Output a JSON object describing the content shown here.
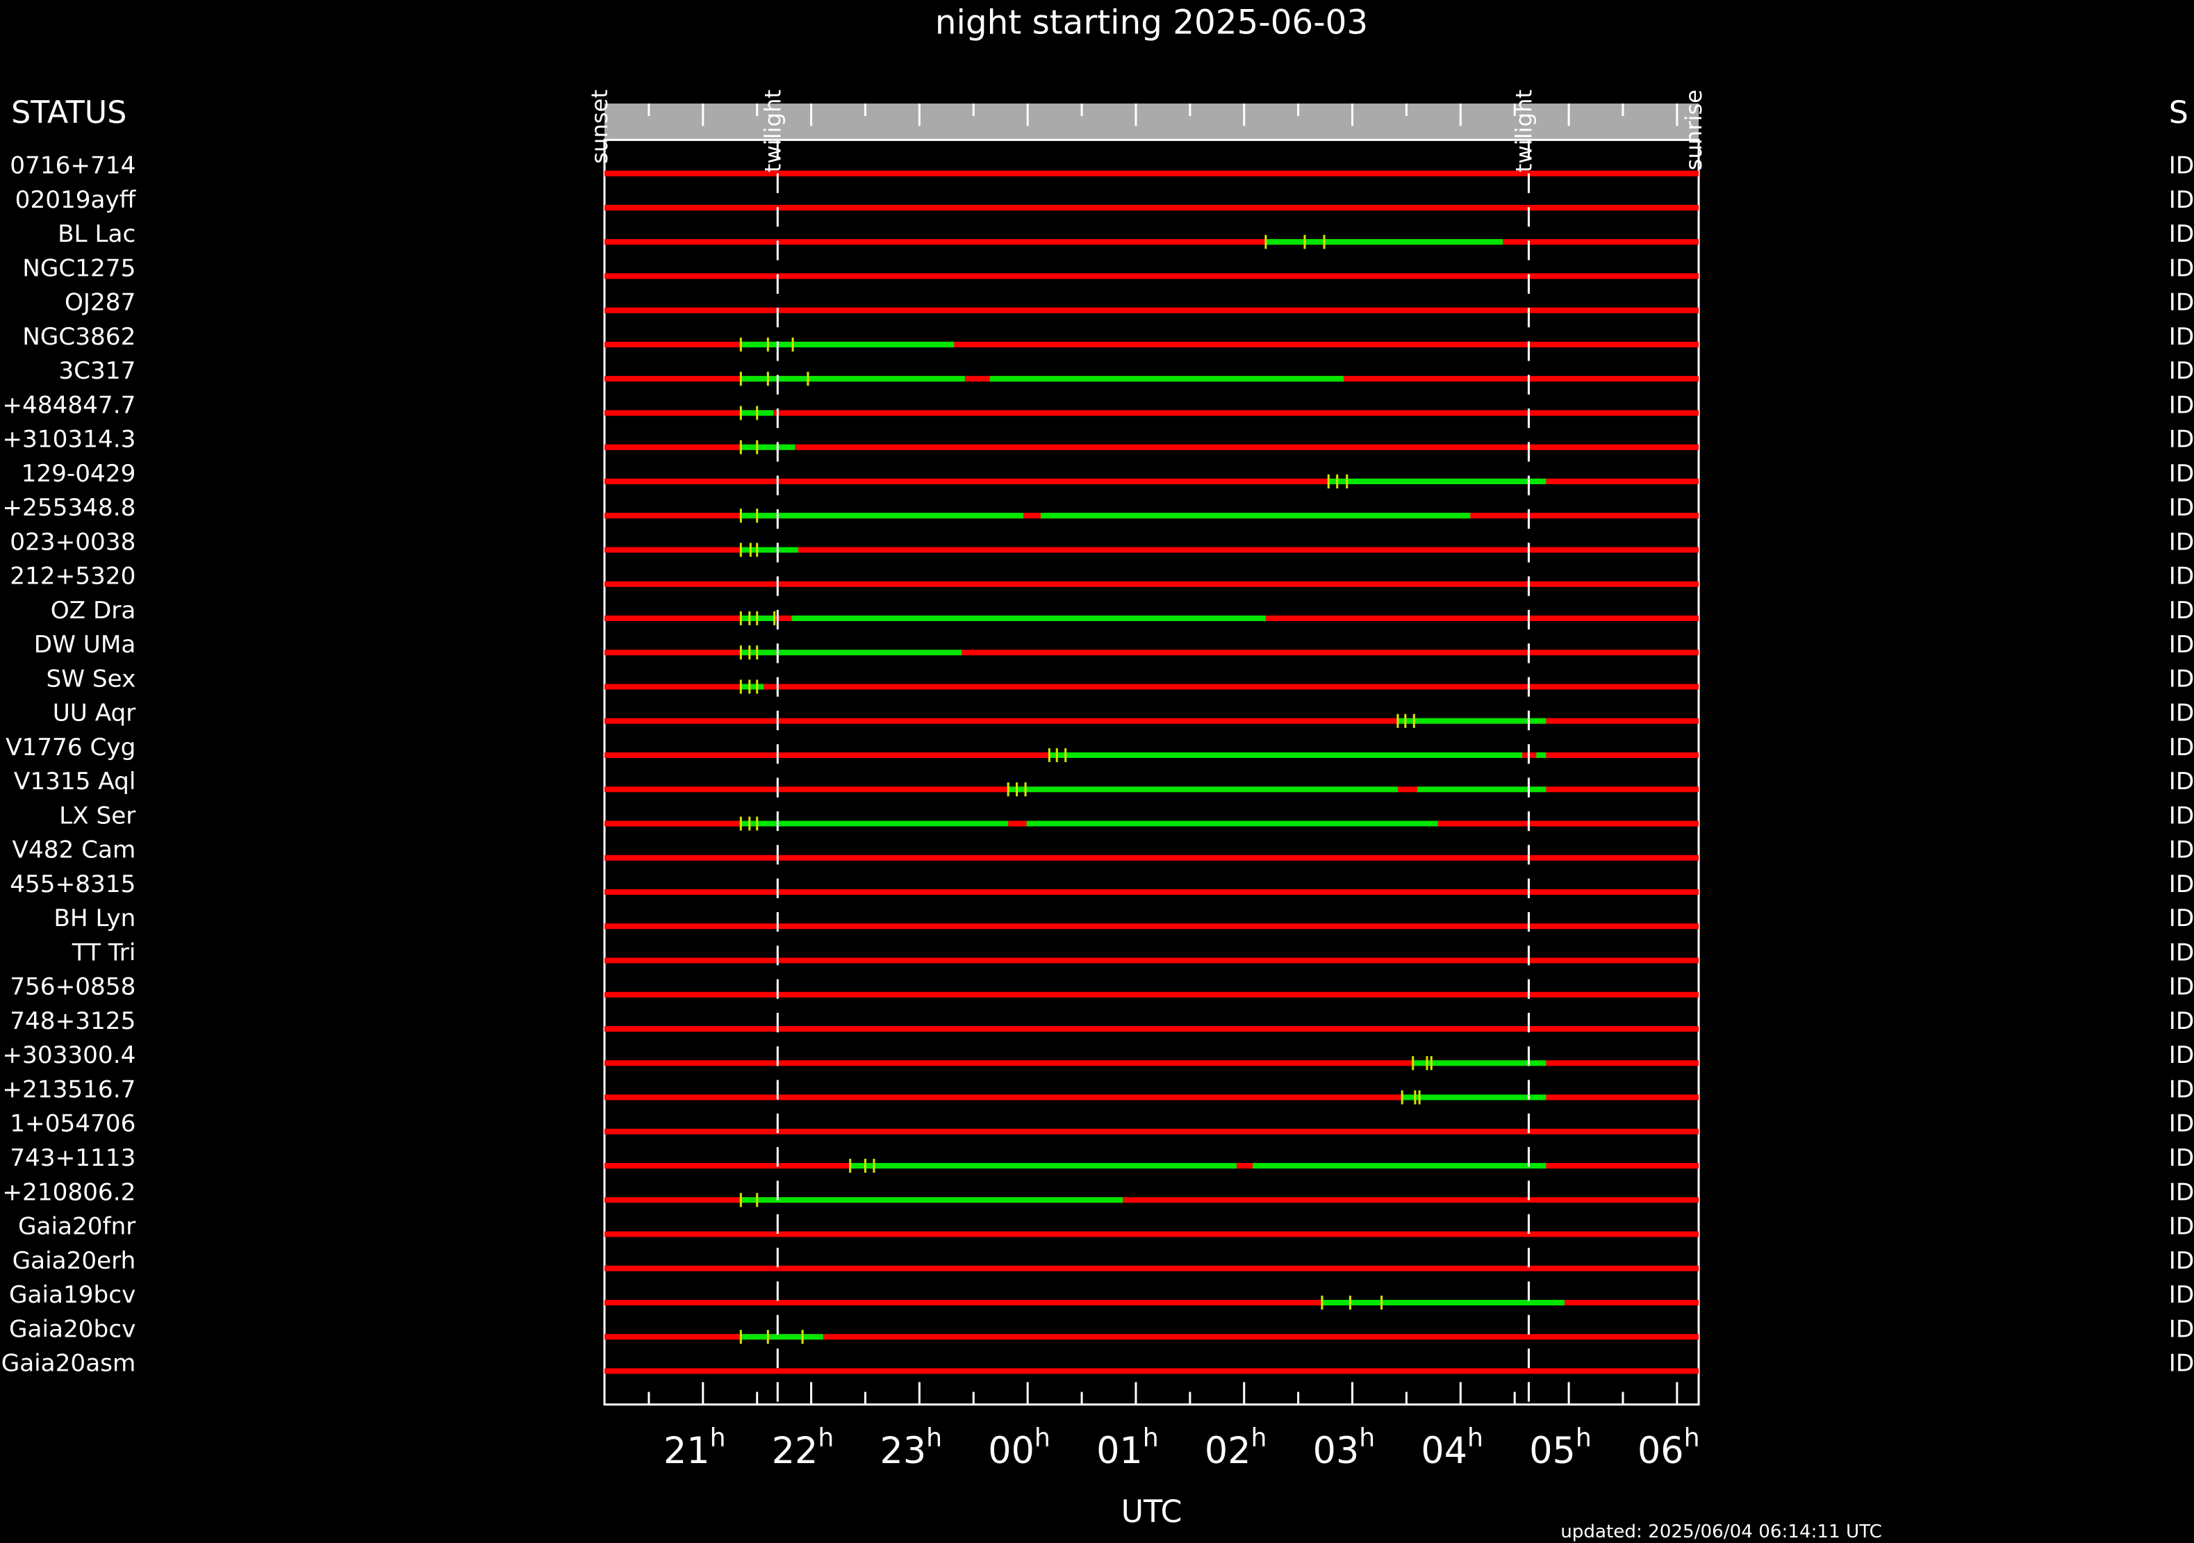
{
  "chart_data": {
    "type": "timeline",
    "title": "night starting 2025-06-03",
    "status_header": "STATUS",
    "status_header_right": "S",
    "xlabel": "UTC",
    "footer": "updated: 2025/06/04 06:14:11 UTC",
    "xlim": [
      20.09,
      30.2
    ],
    "xticks": [
      {
        "value": 21,
        "label": "21h"
      },
      {
        "value": 22,
        "label": "22h"
      },
      {
        "value": 23,
        "label": "23h"
      },
      {
        "value": 24,
        "label": "00h"
      },
      {
        "value": 25,
        "label": "01h"
      },
      {
        "value": 26,
        "label": "02h"
      },
      {
        "value": 27,
        "label": "03h"
      },
      {
        "value": 28,
        "label": "04h"
      },
      {
        "value": 29,
        "label": "05h"
      },
      {
        "value": 30,
        "label": "06h"
      }
    ],
    "events": [
      {
        "label": "sunset",
        "value": 20.09,
        "line": false
      },
      {
        "label": "twilight",
        "value": 21.69,
        "line": true
      },
      {
        "label": "twilight",
        "value": 28.63,
        "line": true
      },
      {
        "label": "sunrise",
        "value": 30.2,
        "line": false
      }
    ],
    "base_color": "#ff0000",
    "segment_color": "#00e600",
    "marker_color": "#d4e600",
    "rows": [
      {
        "name": "0716+714",
        "status": "ID",
        "segments": [],
        "markers": []
      },
      {
        "name": "02019ayff",
        "status": "ID",
        "segments": [],
        "markers": []
      },
      {
        "name": "BL Lac",
        "status": "ID",
        "segments": [
          [
            26.2,
            28.39
          ]
        ],
        "markers": [
          26.2,
          26.56,
          26.74
        ]
      },
      {
        "name": "NGC1275",
        "status": "ID",
        "segments": [],
        "markers": []
      },
      {
        "name": "OJ287",
        "status": "ID",
        "segments": [],
        "markers": []
      },
      {
        "name": "NGC3862",
        "status": "ID",
        "segments": [
          [
            21.35,
            23.32
          ]
        ],
        "markers": [
          21.35,
          21.6,
          21.83
        ]
      },
      {
        "name": "3C317",
        "status": "ID",
        "segments": [
          [
            21.35,
            23.42
          ],
          [
            23.65,
            26.92
          ]
        ],
        "markers": [
          21.35,
          21.6,
          21.97
        ]
      },
      {
        "name": "+484847.7",
        "status": "ID",
        "segments": [
          [
            21.35,
            21.65
          ]
        ],
        "markers": [
          21.35,
          21.5
        ]
      },
      {
        "name": "+310314.3",
        "status": "ID",
        "segments": [
          [
            21.35,
            21.85
          ]
        ],
        "markers": [
          21.35,
          21.5
        ]
      },
      {
        "name": "129-0429",
        "status": "ID",
        "segments": [
          [
            26.78,
            28.79
          ]
        ],
        "markers": [
          26.78,
          26.86,
          26.95
        ]
      },
      {
        "name": "+255348.8",
        "status": "ID",
        "segments": [
          [
            21.35,
            23.96
          ],
          [
            24.12,
            28.09
          ]
        ],
        "markers": [
          21.35,
          21.5
        ]
      },
      {
        "name": "023+0038",
        "status": "ID",
        "segments": [
          [
            21.35,
            21.88
          ]
        ],
        "markers": [
          21.35,
          21.44,
          21.5
        ]
      },
      {
        "name": "212+5320",
        "status": "ID",
        "segments": [],
        "markers": []
      },
      {
        "name": "OZ Dra",
        "status": "ID",
        "segments": [
          [
            21.35,
            21.66
          ],
          [
            21.82,
            26.2
          ]
        ],
        "markers": [
          21.35,
          21.43,
          21.5,
          21.66
        ]
      },
      {
        "name": "DW UMa",
        "status": "ID",
        "segments": [
          [
            21.35,
            23.39
          ]
        ],
        "markers": [
          21.35,
          21.43,
          21.5
        ]
      },
      {
        "name": "SW Sex",
        "status": "ID",
        "segments": [
          [
            21.35,
            21.56
          ]
        ],
        "markers": [
          21.35,
          21.43,
          21.5
        ]
      },
      {
        "name": "UU Aqr",
        "status": "ID",
        "segments": [
          [
            27.42,
            28.79
          ]
        ],
        "markers": [
          27.42,
          27.49,
          27.57
        ]
      },
      {
        "name": "V1776 Cyg",
        "status": "ID",
        "segments": [
          [
            24.2,
            28.57
          ],
          [
            28.7,
            28.79
          ]
        ],
        "markers": [
          24.2,
          24.27,
          24.35
        ]
      },
      {
        "name": "V1315 Aql",
        "status": "ID",
        "segments": [
          [
            23.82,
            27.42
          ],
          [
            27.6,
            28.79
          ]
        ],
        "markers": [
          23.82,
          23.9,
          23.98
        ]
      },
      {
        "name": "LX Ser",
        "status": "ID",
        "segments": [
          [
            21.35,
            23.82
          ],
          [
            23.99,
            27.79
          ]
        ],
        "markers": [
          21.35,
          21.43,
          21.5
        ]
      },
      {
        "name": "V482 Cam",
        "status": "ID",
        "segments": [],
        "markers": []
      },
      {
        "name": "455+8315",
        "status": "ID",
        "segments": [],
        "markers": []
      },
      {
        "name": "BH Lyn",
        "status": "ID",
        "segments": [],
        "markers": []
      },
      {
        "name": "TT Tri",
        "status": "ID",
        "segments": [],
        "markers": []
      },
      {
        "name": "756+0858",
        "status": "ID",
        "segments": [],
        "markers": []
      },
      {
        "name": "748+3125",
        "status": "ID",
        "segments": [],
        "markers": []
      },
      {
        "name": "+303300.4",
        "status": "ID",
        "segments": [
          [
            27.56,
            28.79
          ]
        ],
        "markers": [
          27.56,
          27.69,
          27.73
        ]
      },
      {
        "name": "+213516.7",
        "status": "ID",
        "segments": [
          [
            27.46,
            28.79
          ]
        ],
        "markers": [
          27.46,
          27.58,
          27.62
        ]
      },
      {
        "name": "1+054706",
        "status": "ID",
        "segments": [],
        "markers": []
      },
      {
        "name": "743+1113",
        "status": "ID",
        "segments": [
          [
            22.36,
            25.93
          ],
          [
            26.08,
            28.79
          ]
        ],
        "markers": [
          22.36,
          22.5,
          22.58
        ]
      },
      {
        "name": "+210806.2",
        "status": "ID",
        "segments": [
          [
            21.35,
            24.88
          ]
        ],
        "markers": [
          21.35,
          21.5
        ]
      },
      {
        "name": "Gaia20fnr",
        "status": "ID",
        "segments": [],
        "markers": []
      },
      {
        "name": "Gaia20erh",
        "status": "ID",
        "segments": [],
        "markers": []
      },
      {
        "name": "Gaia19bcv",
        "status": "ID",
        "segments": [
          [
            26.72,
            28.96
          ]
        ],
        "markers": [
          26.72,
          26.98,
          27.27
        ]
      },
      {
        "name": "Gaia20bcv",
        "status": "ID",
        "segments": [
          [
            21.35,
            22.11
          ]
        ],
        "markers": [
          21.35,
          21.6,
          21.92
        ]
      },
      {
        "name": "Gaia20asm",
        "status": "ID",
        "segments": [],
        "markers": []
      }
    ]
  }
}
